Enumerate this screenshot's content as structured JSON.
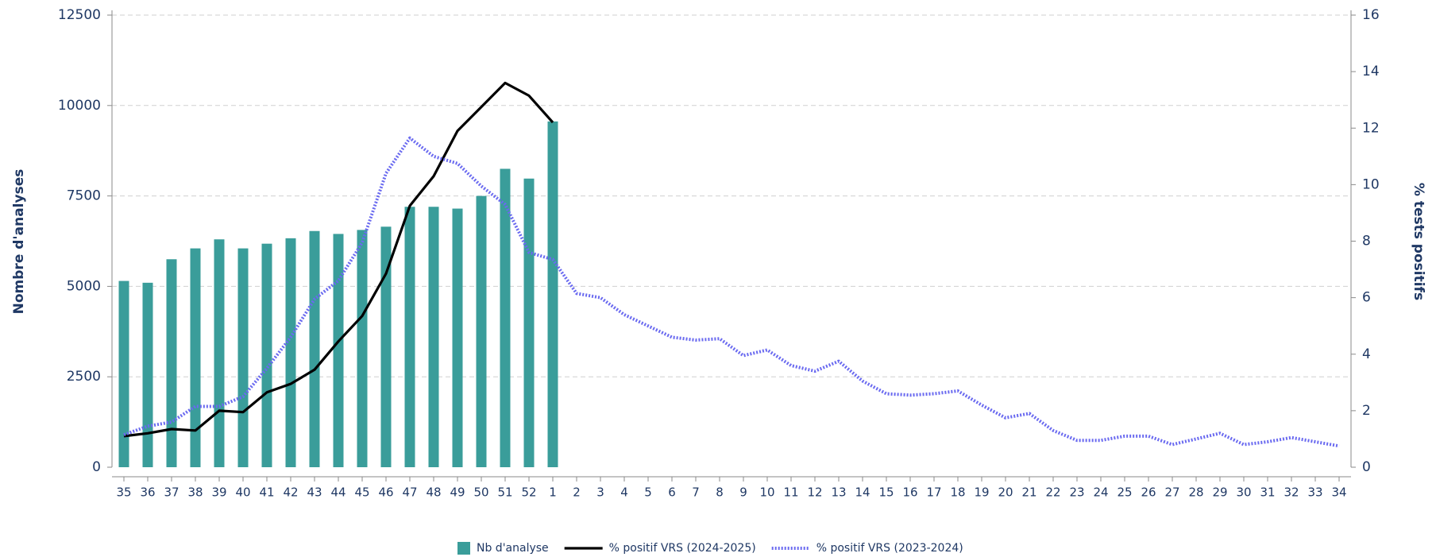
{
  "chart_data": {
    "type": "bar",
    "categories": [
      "35",
      "36",
      "37",
      "38",
      "39",
      "40",
      "41",
      "42",
      "43",
      "44",
      "45",
      "46",
      "47",
      "48",
      "49",
      "50",
      "51",
      "52",
      "1",
      "2",
      "3",
      "4",
      "5",
      "6",
      "7",
      "8",
      "9",
      "10",
      "11",
      "12",
      "13",
      "14",
      "15",
      "16",
      "17",
      "18",
      "19",
      "20",
      "21",
      "22",
      "23",
      "24",
      "25",
      "26",
      "27",
      "28",
      "29",
      "30",
      "31",
      "32",
      "33",
      "34"
    ],
    "series": [
      {
        "name": "Nb d'analyse",
        "type": "bar",
        "color": "#3a9d9a",
        "values": [
          5150,
          5100,
          5750,
          6050,
          6300,
          6050,
          6180,
          6330,
          6530,
          6450,
          6560,
          6650,
          7200,
          7200,
          7150,
          7500,
          8250,
          7980,
          9560,
          null,
          null,
          null,
          null,
          null,
          null,
          null,
          null,
          null,
          null,
          null,
          null,
          null,
          null,
          null,
          null,
          null,
          null,
          null,
          null,
          null,
          null,
          null,
          null,
          null,
          null,
          null,
          null,
          null,
          null,
          null,
          null,
          null
        ]
      },
      {
        "name": "% positif VRS (2024-2025)",
        "type": "line",
        "axis": "y2",
        "color": "#000000",
        "values": [
          1.1,
          1.2,
          1.35,
          1.3,
          2.0,
          1.95,
          2.65,
          2.95,
          3.45,
          4.45,
          5.35,
          6.85,
          9.25,
          10.3,
          11.9,
          12.75,
          13.6,
          13.15,
          12.2,
          null,
          null,
          null,
          null,
          null,
          null,
          null,
          null,
          null,
          null,
          null,
          null,
          null,
          null,
          null,
          null,
          null,
          null,
          null,
          null,
          null,
          null,
          null,
          null,
          null,
          null,
          null,
          null,
          null,
          null,
          null,
          null,
          null
        ]
      },
      {
        "name": "% positif VRS (2023-2024)",
        "type": "line",
        "axis": "y2",
        "dotted": true,
        "color": "#6a6af0",
        "values": [
          1.15,
          1.45,
          1.6,
          2.15,
          2.15,
          2.5,
          3.5,
          4.6,
          5.95,
          6.6,
          7.95,
          10.4,
          11.65,
          11.0,
          10.75,
          9.95,
          9.3,
          7.6,
          7.35,
          6.15,
          6.0,
          5.4,
          5.0,
          4.6,
          4.5,
          4.55,
          3.95,
          4.15,
          3.6,
          3.4,
          3.75,
          3.05,
          2.6,
          2.55,
          2.6,
          2.7,
          2.2,
          1.75,
          1.9,
          1.3,
          0.95,
          0.95,
          1.1,
          1.1,
          0.8,
          1.0,
          1.2,
          0.8,
          0.9,
          1.05,
          0.9,
          0.75
        ]
      }
    ],
    "y_label": "Nombre d'analyses",
    "y2_label": "% tests positifs",
    "ylim": [
      0,
      12500
    ],
    "yticks": [
      0,
      2500,
      5000,
      7500,
      10000,
      12500
    ],
    "y2lim": [
      0,
      16
    ],
    "y2ticks": [
      0,
      2,
      4,
      6,
      8,
      10,
      12,
      14,
      16
    ],
    "grid": true
  }
}
